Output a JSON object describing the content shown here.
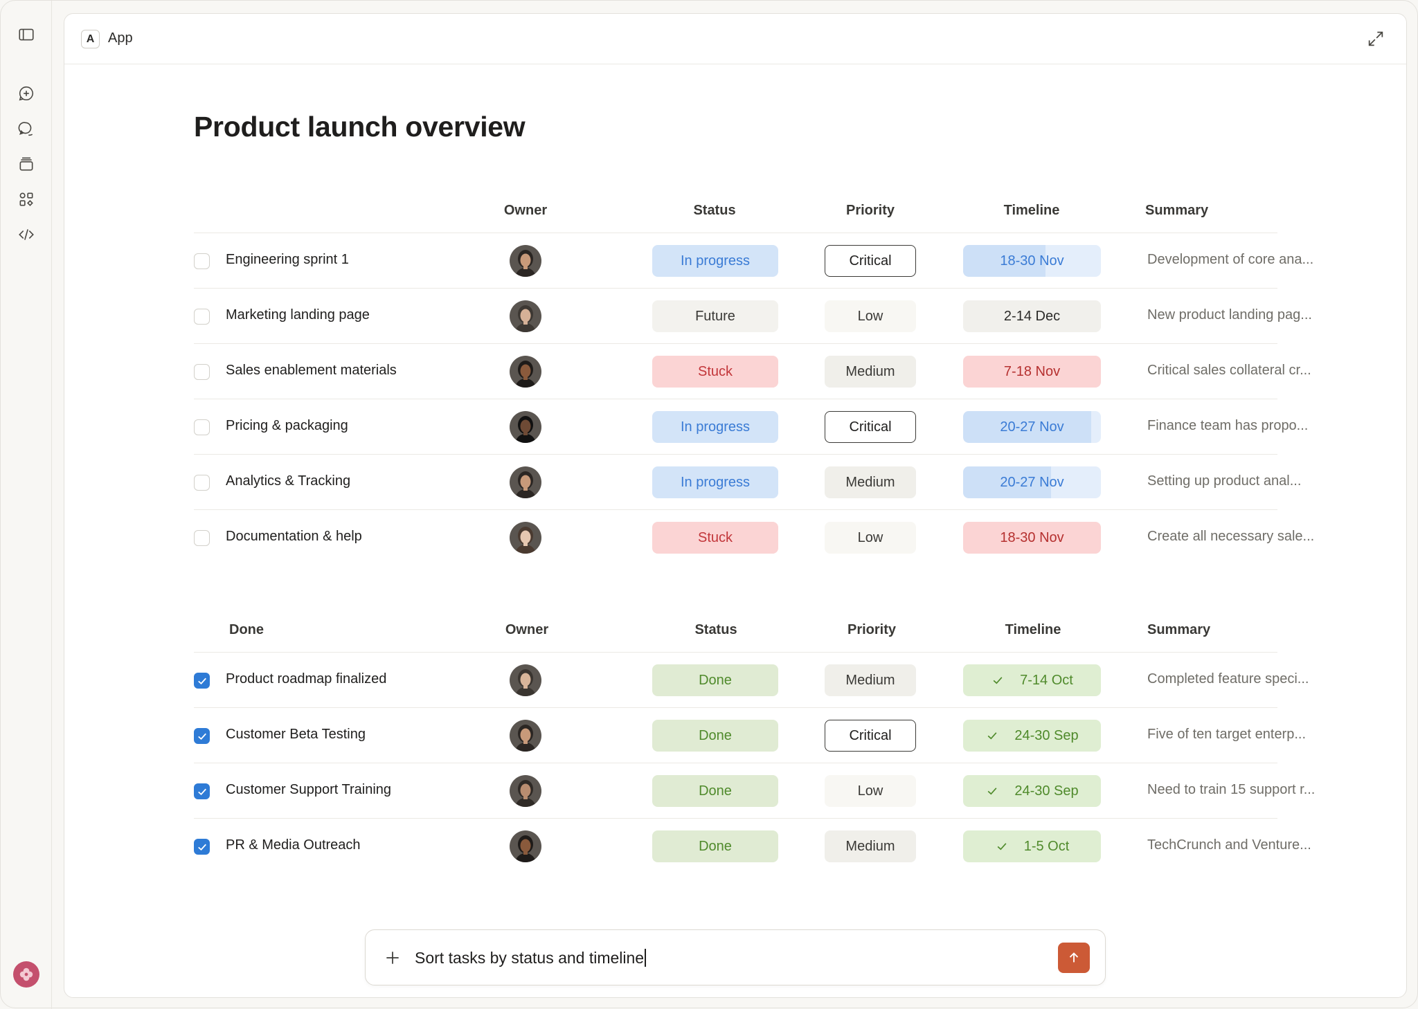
{
  "app": {
    "badge": "A",
    "name": "App"
  },
  "page_title": "Product launch overview",
  "colors": {
    "accent": "#cc5a36",
    "checkbox": "#2e7bd6"
  },
  "active_table": {
    "headers": {
      "task": "",
      "owner": "Owner",
      "status": "Status",
      "priority": "Priority",
      "timeline": "Timeline",
      "summary": "Summary"
    },
    "rows": [
      {
        "task": "Engineering sprint 1",
        "owner_hair": "#2b2623",
        "owner_skin": "#c89a7a",
        "status": "In progress",
        "status_kind": "progress",
        "priority": "Critical",
        "priority_kind": "critical",
        "timeline": "18-30 Nov",
        "timeline_kind": "blue",
        "timeline_progress": 0.6,
        "summary": "Development of core ana..."
      },
      {
        "task": "Marketing landing page",
        "owner_hair": "#3d3833",
        "owner_skin": "#d6b197",
        "status": "Future",
        "status_kind": "future",
        "priority": "Low",
        "priority_kind": "low",
        "timeline": "2-14 Dec",
        "timeline_kind": "neutral",
        "timeline_progress": 0,
        "summary": "New product landing pag..."
      },
      {
        "task": "Sales enablement materials",
        "owner_hair": "#1e1b19",
        "owner_skin": "#8a5a3c",
        "status": "Stuck",
        "status_kind": "stuck",
        "priority": "Medium",
        "priority_kind": "medium",
        "timeline": "7-18 Nov",
        "timeline_kind": "red",
        "timeline_progress": 0,
        "summary": "Critical sales collateral cr..."
      },
      {
        "task": "Pricing & packaging",
        "owner_hair": "#111111",
        "owner_skin": "#6e4a35",
        "status": "In progress",
        "status_kind": "progress",
        "priority": "Critical",
        "priority_kind": "critical",
        "timeline": "20-27 Nov",
        "timeline_kind": "blue",
        "timeline_progress": 0.93,
        "summary": "Finance team has propo..."
      },
      {
        "task": "Analytics & Tracking",
        "owner_hair": "#2b2623",
        "owner_skin": "#c89a7a",
        "status": "In progress",
        "status_kind": "progress",
        "priority": "Medium",
        "priority_kind": "medium",
        "timeline": "20-27 Nov",
        "timeline_kind": "blue",
        "timeline_progress": 0.64,
        "summary": "Setting up product anal..."
      },
      {
        "task": "Documentation & help",
        "owner_hair": "#4a3a30",
        "owner_skin": "#e6c7b0",
        "status": "Stuck",
        "status_kind": "stuck",
        "priority": "Low",
        "priority_kind": "low",
        "timeline": "18-30 Nov",
        "timeline_kind": "red",
        "timeline_progress": 0,
        "summary": "Create all necessary sale..."
      }
    ]
  },
  "done_table": {
    "headers": {
      "task": "Done",
      "owner": "Owner",
      "status": "Status",
      "priority": "Priority",
      "timeline": "Timeline",
      "summary": "Summary"
    },
    "rows": [
      {
        "task": "Product roadmap finalized",
        "owner_hair": "#3a3530",
        "owner_skin": "#d8b59a",
        "status": "Done",
        "status_kind": "done",
        "priority": "Medium",
        "priority_kind": "medium",
        "timeline": "7-14 Oct",
        "timeline_kind": "green",
        "summary": "Completed feature speci..."
      },
      {
        "task": "Customer Beta Testing",
        "owner_hair": "#2b2623",
        "owner_skin": "#c89a7a",
        "status": "Done",
        "status_kind": "done",
        "priority": "Critical",
        "priority_kind": "critical",
        "timeline": "24-30 Sep",
        "timeline_kind": "green",
        "summary": "Five of ten target enterp..."
      },
      {
        "task": "Customer Support Training",
        "owner_hair": "#2f2a26",
        "owner_skin": "#b98d70",
        "status": "Done",
        "status_kind": "done",
        "priority": "Low",
        "priority_kind": "low",
        "timeline": "24-30 Sep",
        "timeline_kind": "green",
        "summary": "Need to train 15 support r..."
      },
      {
        "task": "PR & Media Outreach",
        "owner_hair": "#1e1b19",
        "owner_skin": "#8a5a3c",
        "status": "Done",
        "status_kind": "done",
        "priority": "Medium",
        "priority_kind": "medium",
        "timeline": "1-5 Oct",
        "timeline_kind": "green",
        "summary": "TechCrunch and Venture..."
      }
    ]
  },
  "prompt": {
    "text": "Sort tasks by status and timeline"
  },
  "sidebar_icons": [
    "sidebar-toggle-icon",
    "new-chat-icon",
    "chats-icon",
    "projects-icon",
    "artifacts-icon",
    "code-icon"
  ]
}
